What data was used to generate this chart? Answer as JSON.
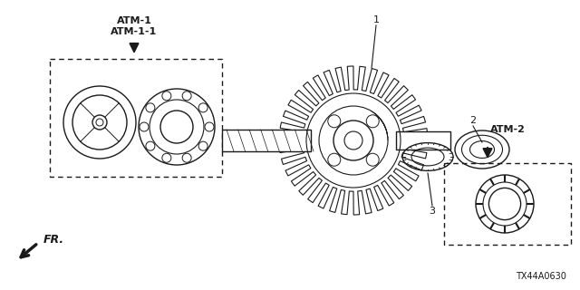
{
  "background_color": "#ffffff",
  "atm1_labels": [
    "ATM-1",
    "ATM-1-1"
  ],
  "atm2_label": "ATM-2",
  "fr_label": "FR.",
  "part_code": "TX44A0630",
  "black": "#1a1a1a"
}
